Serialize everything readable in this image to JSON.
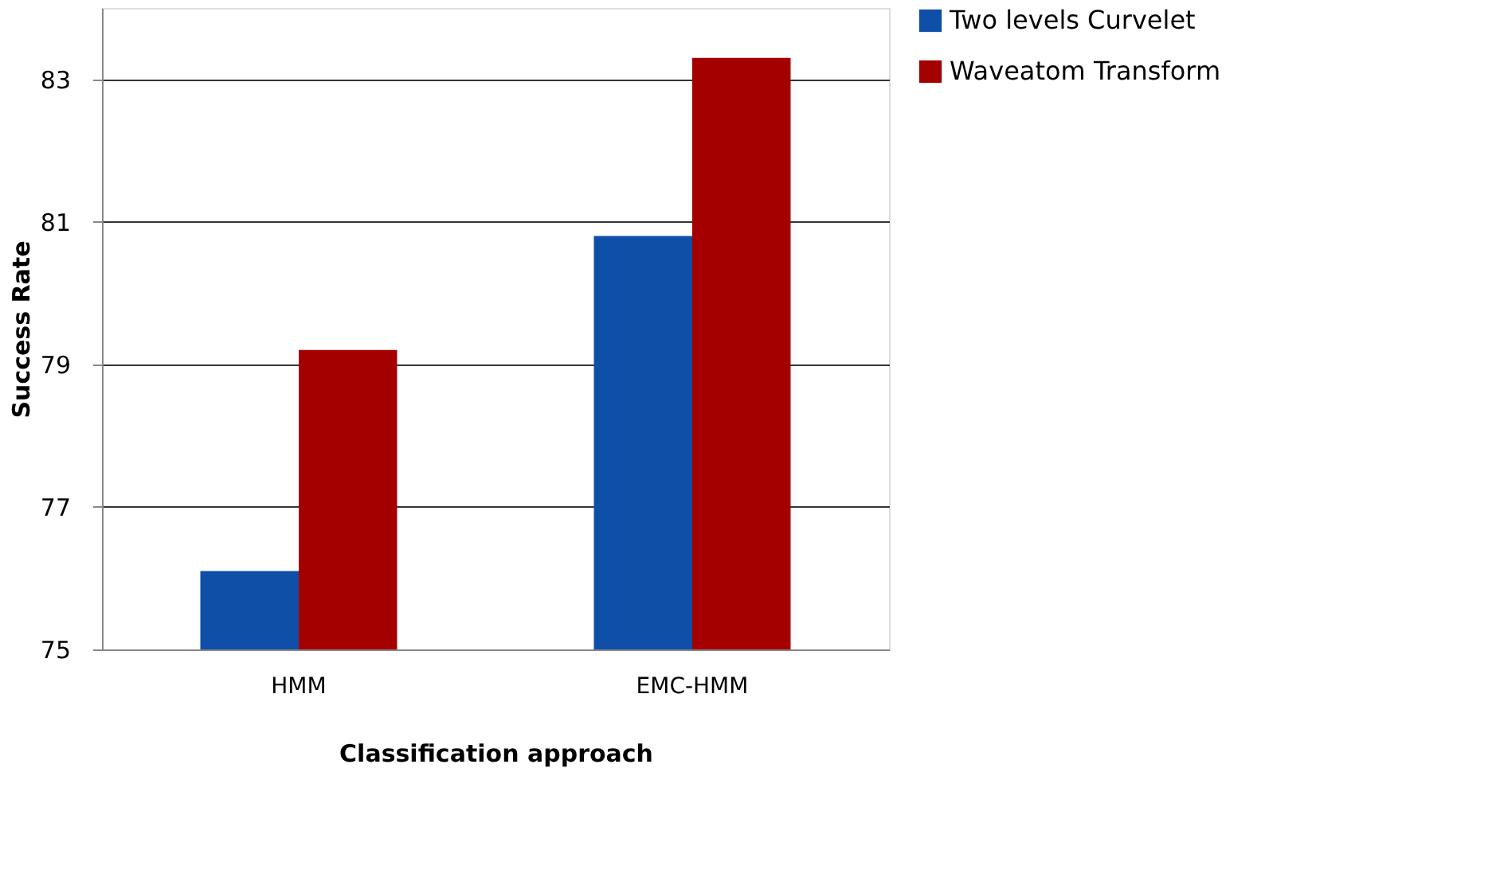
{
  "chart_data": {
    "type": "bar",
    "xlabel": "Classification  approach",
    "ylabel": "Success Rate",
    "categories": [
      "HMM",
      "EMC-HMM"
    ],
    "series": [
      {
        "name": "Two levels Curvelet",
        "color": "#0f4fa8",
        "values": [
          76.1,
          80.8
        ]
      },
      {
        "name": "Waveatom Transform",
        "color": "#a50000",
        "values": [
          79.2,
          83.3
        ]
      }
    ],
    "ylim": [
      75,
      84
    ],
    "yticks": [
      75,
      77,
      79,
      81,
      83
    ],
    "grid": "y",
    "legend": "right"
  }
}
